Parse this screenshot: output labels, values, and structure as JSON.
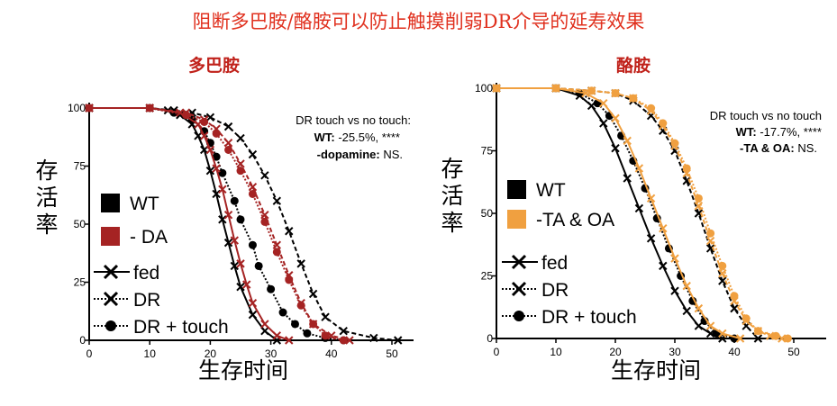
{
  "main_title": "阻断多巴胺/酪胺可以防止触摸削弱DR介导的延寿效果",
  "chart_data": [
    {
      "type": "line",
      "panel_title": "多巴胺",
      "xlabel": "生存时间",
      "ylabel": "存活率",
      "xlim": [
        0,
        55
      ],
      "ylim": [
        0,
        100
      ],
      "xticks": [
        "0",
        "10",
        "20",
        "30",
        "40",
        "50"
      ],
      "yticks": [
        "0",
        "25",
        "50",
        "75",
        "100"
      ],
      "annotation": {
        "line1": "DR touch vs no touch:",
        "line2_bold": "WT:",
        "line2_rest": " -25.5%, ****",
        "line3_bold": "-dopamine:",
        "line3_rest": " NS."
      },
      "legend_colors": [
        {
          "label": "WT",
          "color": "#000000"
        },
        {
          "label": "- DA",
          "color": "#a52323"
        }
      ],
      "legend_styles": [
        {
          "label": "fed",
          "marker": "x",
          "line": "solid"
        },
        {
          "label": "DR",
          "marker": "x",
          "line": "dotted"
        },
        {
          "label": "DR + touch",
          "marker": "circle",
          "line": "dotted"
        }
      ],
      "series": [
        {
          "group": "WT",
          "condition": "fed",
          "color": "#000000",
          "dash": "",
          "marker": "x",
          "x": [
            0,
            10,
            13,
            15,
            17,
            18,
            19,
            20,
            21,
            22,
            23,
            24,
            25,
            27,
            29,
            31
          ],
          "y": [
            100,
            100,
            99,
            97,
            93,
            88,
            82,
            73,
            63,
            52,
            42,
            32,
            23,
            11,
            4,
            0
          ]
        },
        {
          "group": "WT",
          "condition": "DR",
          "color": "#000000",
          "dash": "5,3",
          "marker": "x",
          "x": [
            0,
            10,
            14,
            17,
            20,
            23,
            25,
            27,
            29,
            31,
            33,
            35,
            37,
            39,
            42,
            47,
            51
          ],
          "y": [
            100,
            100,
            99,
            98,
            96,
            92,
            87,
            80,
            71,
            60,
            47,
            33,
            20,
            10,
            4,
            1,
            0
          ]
        },
        {
          "group": "WT",
          "condition": "DR + touch",
          "color": "#000000",
          "dash": "2,2",
          "marker": "circle",
          "x": [
            0,
            10,
            14,
            17,
            19,
            20,
            21,
            22,
            24,
            25,
            27,
            28,
            30,
            32,
            34,
            36,
            39,
            42
          ],
          "y": [
            100,
            100,
            98,
            95,
            90,
            85,
            79,
            72,
            60,
            52,
            41,
            32,
            22,
            12,
            7,
            3,
            1,
            0
          ]
        },
        {
          "group": "- DA",
          "condition": "fed",
          "color": "#a52323",
          "dash": "",
          "marker": "x",
          "x": [
            0,
            10,
            15,
            18,
            19,
            20,
            21,
            22,
            23,
            24,
            25,
            26,
            27,
            29,
            31,
            33
          ],
          "y": [
            100,
            100,
            98,
            93,
            88,
            82,
            74,
            65,
            54,
            43,
            33,
            24,
            16,
            7,
            2,
            0
          ]
        },
        {
          "group": "- DA",
          "condition": "DR",
          "color": "#a52323",
          "dash": "5,3",
          "marker": "x",
          "x": [
            0,
            10,
            16,
            19,
            21,
            23,
            25,
            27,
            29,
            31,
            33,
            35,
            37,
            40,
            43
          ],
          "y": [
            100,
            100,
            98,
            95,
            91,
            85,
            76,
            66,
            54,
            41,
            28,
            16,
            7,
            2,
            0
          ]
        },
        {
          "group": "- DA",
          "condition": "DR + touch",
          "color": "#a52323",
          "dash": "2,2",
          "marker": "circle",
          "x": [
            0,
            10,
            16,
            19,
            21,
            23,
            25,
            27,
            29,
            31,
            33,
            35,
            37,
            39,
            42
          ],
          "y": [
            100,
            100,
            97,
            94,
            89,
            82,
            73,
            63,
            51,
            38,
            26,
            15,
            7,
            2,
            0
          ]
        }
      ]
    },
    {
      "type": "line",
      "panel_title": "酪胺",
      "xlabel": "生存时间",
      "ylabel": "存活率",
      "xlim": [
        0,
        55
      ],
      "ylim": [
        0,
        100
      ],
      "xticks": [
        "0",
        "10",
        "20",
        "30",
        "40",
        "50"
      ],
      "yticks": [
        "0",
        "25",
        "50",
        "75",
        "100"
      ],
      "annotation": {
        "line1": "DR touch vs no touch",
        "line2_bold": "WT:",
        "line2_rest": " -17.7%, ****",
        "line3_bold": "-TA & OA:",
        "line3_rest": " NS."
      },
      "legend_colors": [
        {
          "label": "WT",
          "color": "#000000"
        },
        {
          "label": "-TA & OA",
          "color": "#f0a040"
        }
      ],
      "legend_styles": [
        {
          "label": "fed",
          "marker": "x",
          "line": "solid"
        },
        {
          "label": "DR",
          "marker": "x",
          "line": "dotted"
        },
        {
          "label": "DR + touch",
          "marker": "circle",
          "line": "dotted"
        }
      ],
      "series": [
        {
          "group": "WT",
          "condition": "fed",
          "color": "#000000",
          "dash": "",
          "marker": "x",
          "x": [
            0,
            10,
            14,
            16,
            18,
            20,
            22,
            24,
            26,
            28,
            30,
            32,
            34,
            36,
            38
          ],
          "y": [
            100,
            100,
            97,
            93,
            86,
            76,
            64,
            52,
            40,
            29,
            19,
            11,
            5,
            2,
            0
          ]
        },
        {
          "group": "WT",
          "condition": "DR",
          "color": "#000000",
          "dash": "5,3",
          "marker": "x",
          "x": [
            0,
            10,
            16,
            20,
            23,
            26,
            28,
            30,
            32,
            34,
            36,
            38,
            40,
            42,
            44
          ],
          "y": [
            100,
            100,
            99,
            98,
            95,
            89,
            83,
            75,
            63,
            50,
            36,
            23,
            12,
            5,
            0
          ]
        },
        {
          "group": "WT",
          "condition": "DR + touch",
          "color": "#000000",
          "dash": "2,2",
          "marker": "circle",
          "x": [
            0,
            10,
            14,
            17,
            19,
            21,
            23,
            25,
            27,
            29,
            31,
            33,
            35,
            37,
            40
          ],
          "y": [
            100,
            100,
            98,
            94,
            89,
            81,
            71,
            60,
            48,
            36,
            25,
            15,
            7,
            2,
            0
          ]
        },
        {
          "group": "-TA & OA",
          "condition": "fed",
          "color": "#f0a040",
          "dash": "",
          "marker": "x",
          "x": [
            0,
            10,
            15,
            18,
            20,
            22,
            24,
            26,
            28,
            30,
            32,
            34,
            36,
            38,
            41
          ],
          "y": [
            100,
            100,
            98,
            94,
            88,
            79,
            68,
            56,
            44,
            32,
            21,
            12,
            5,
            2,
            0
          ]
        },
        {
          "group": "-TA & OA",
          "condition": "DR",
          "color": "#f0a040",
          "dash": "5,3",
          "marker": "x",
          "x": [
            0,
            10,
            16,
            20,
            23,
            26,
            28,
            30,
            32,
            34,
            36,
            38,
            40,
            42,
            44,
            46,
            48
          ],
          "y": [
            100,
            100,
            99,
            98,
            96,
            91,
            85,
            77,
            66,
            53,
            39,
            26,
            15,
            7,
            3,
            1,
            0
          ]
        },
        {
          "group": "-TA & OA",
          "condition": "DR + touch",
          "color": "#f0a040",
          "dash": "2,2",
          "marker": "circle",
          "x": [
            0,
            10,
            16,
            20,
            23,
            26,
            28,
            30,
            32,
            34,
            36,
            38,
            40,
            42,
            44,
            47,
            49
          ],
          "y": [
            100,
            100,
            99,
            98,
            96,
            92,
            86,
            78,
            68,
            56,
            42,
            29,
            17,
            8,
            3,
            1,
            0
          ]
        }
      ]
    }
  ]
}
